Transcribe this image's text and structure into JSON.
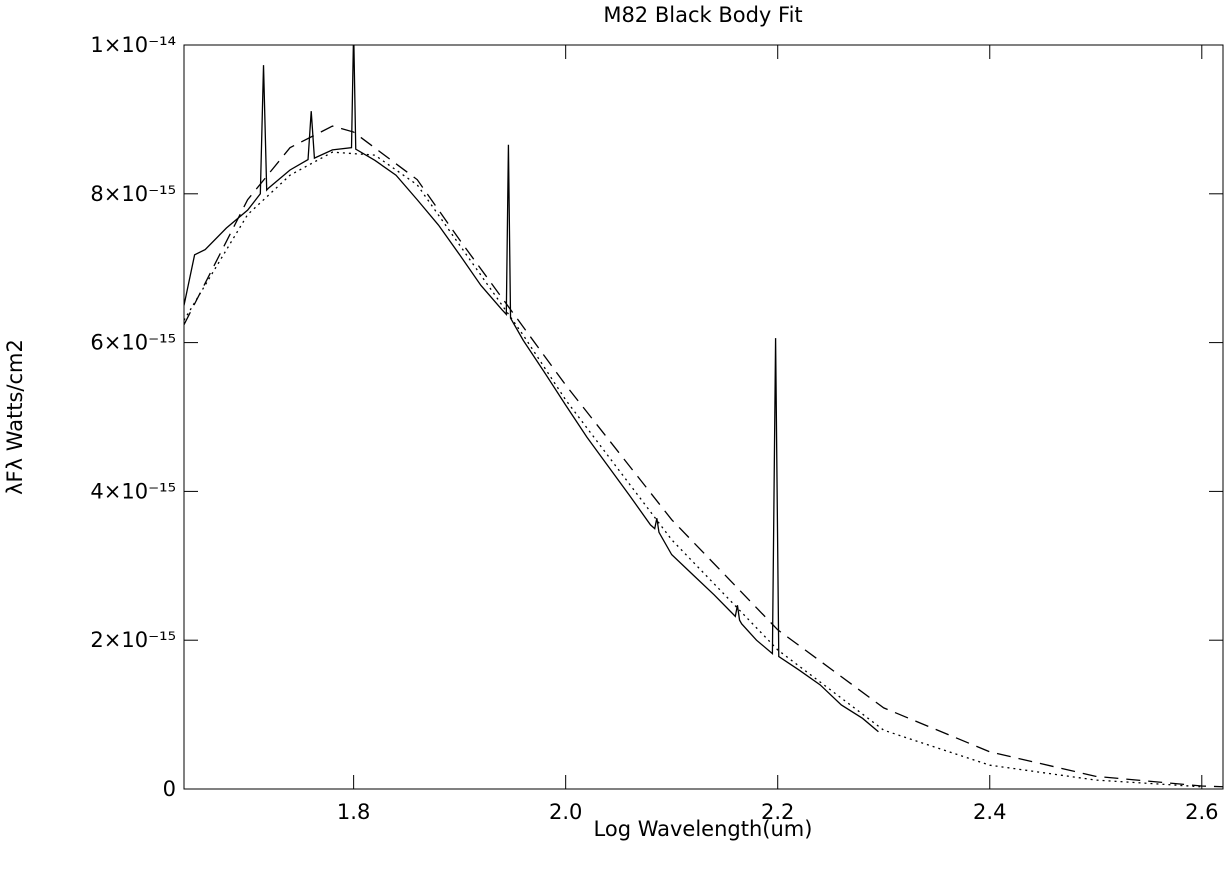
{
  "chart_data": {
    "type": "line",
    "title": "M82 Black Body Fit",
    "xlabel": "Log Wavelength(um)",
    "ylabel": "λFλ Watts/cm2",
    "xlim": [
      1.64,
      2.62
    ],
    "ylim": [
      0,
      1e-14
    ],
    "xticks": [
      1.8,
      {
        "value": 2,
        "label": "2.0"
      },
      2.2,
      2.4,
      2.6
    ],
    "yticks": [
      0,
      {
        "value": 2e-15,
        "label": "2×10⁻¹⁵"
      },
      {
        "value": 4e-15,
        "label": "4×10⁻¹⁵"
      },
      {
        "value": 6e-15,
        "label": "6×10⁻¹⁵"
      },
      {
        "value": 8e-15,
        "label": "8×10⁻¹⁵"
      },
      {
        "value": 1e-14,
        "label": "1×10⁻¹⁴"
      }
    ],
    "series": [
      {
        "color": "#000000",
        "linestyle": "solid",
        "x": [
          1.64,
          1.65,
          1.66,
          1.68,
          1.7,
          1.712,
          1.715,
          1.718,
          1.72,
          1.74,
          1.757,
          1.76,
          1.763,
          1.78,
          1.798,
          1.8,
          1.802,
          1.82,
          1.84,
          1.86,
          1.88,
          1.9,
          1.92,
          1.94,
          1.944,
          1.946,
          1.948,
          1.96,
          1.98,
          2.0,
          2.02,
          2.04,
          2.06,
          2.08,
          2.084,
          2.086,
          2.088,
          2.1,
          2.12,
          2.14,
          2.16,
          2.162,
          2.164,
          2.166,
          2.18,
          2.195,
          2.198,
          2.201,
          2.22,
          2.24,
          2.26,
          2.28,
          2.295
        ],
        "values": [
          6.5e-15,
          7.18e-15,
          7.25e-15,
          7.54e-15,
          7.78e-15,
          8e-15,
          9.73e-15,
          8.05e-15,
          8.08e-15,
          8.32e-15,
          8.46e-15,
          9.11e-15,
          8.48e-15,
          8.59e-15,
          8.62e-15,
          1.02e-14,
          8.6e-15,
          8.45e-15,
          8.25e-15,
          7.92e-15,
          7.58e-15,
          7.18e-15,
          6.77e-15,
          6.44e-15,
          6.38e-15,
          8.66e-15,
          6.33e-15,
          6.03e-15,
          5.6e-15,
          5.16e-15,
          4.73e-15,
          4.34e-15,
          3.95e-15,
          3.55e-15,
          3.5e-15,
          3.64e-15,
          3.45e-15,
          3.15e-15,
          2.88e-15,
          2.61e-15,
          2.32e-15,
          2.47e-15,
          2.27e-15,
          2.22e-15,
          2e-15,
          1.82e-15,
          6.06e-15,
          1.78e-15,
          1.6e-15,
          1.4e-15,
          1.13e-15,
          9.5e-16,
          7.7e-16
        ]
      },
      {
        "color": "#000000",
        "linestyle": "dashed",
        "x": [
          1.64,
          1.7,
          1.74,
          1.78,
          1.8,
          1.86,
          1.9,
          2.0,
          2.1,
          2.2,
          2.3,
          2.4,
          2.5,
          2.6,
          2.62
        ],
        "values": [
          6.24e-15,
          7.92e-15,
          8.62e-15,
          8.91e-15,
          8.83e-15,
          8.19e-15,
          7.38e-15,
          5.43e-15,
          3.62e-15,
          2.14e-15,
          1.09e-15,
          5e-16,
          1.7e-16,
          4e-17,
          3e-17
        ]
      },
      {
        "color": "#000000",
        "linestyle": "dotted",
        "x": [
          1.64,
          1.7,
          1.74,
          1.78,
          1.82,
          1.86,
          1.9,
          1.96,
          2.0,
          2.1,
          2.2,
          2.3,
          2.4,
          2.5,
          2.6
        ],
        "values": [
          6.3e-15,
          7.72e-15,
          8.25e-15,
          8.56e-15,
          8.52e-15,
          8.12e-15,
          7.31e-15,
          6.1e-15,
          5.23e-15,
          3.35e-15,
          1.87e-15,
          7.9e-16,
          3.2e-16,
          1.2e-16,
          3e-17
        ]
      }
    ]
  }
}
